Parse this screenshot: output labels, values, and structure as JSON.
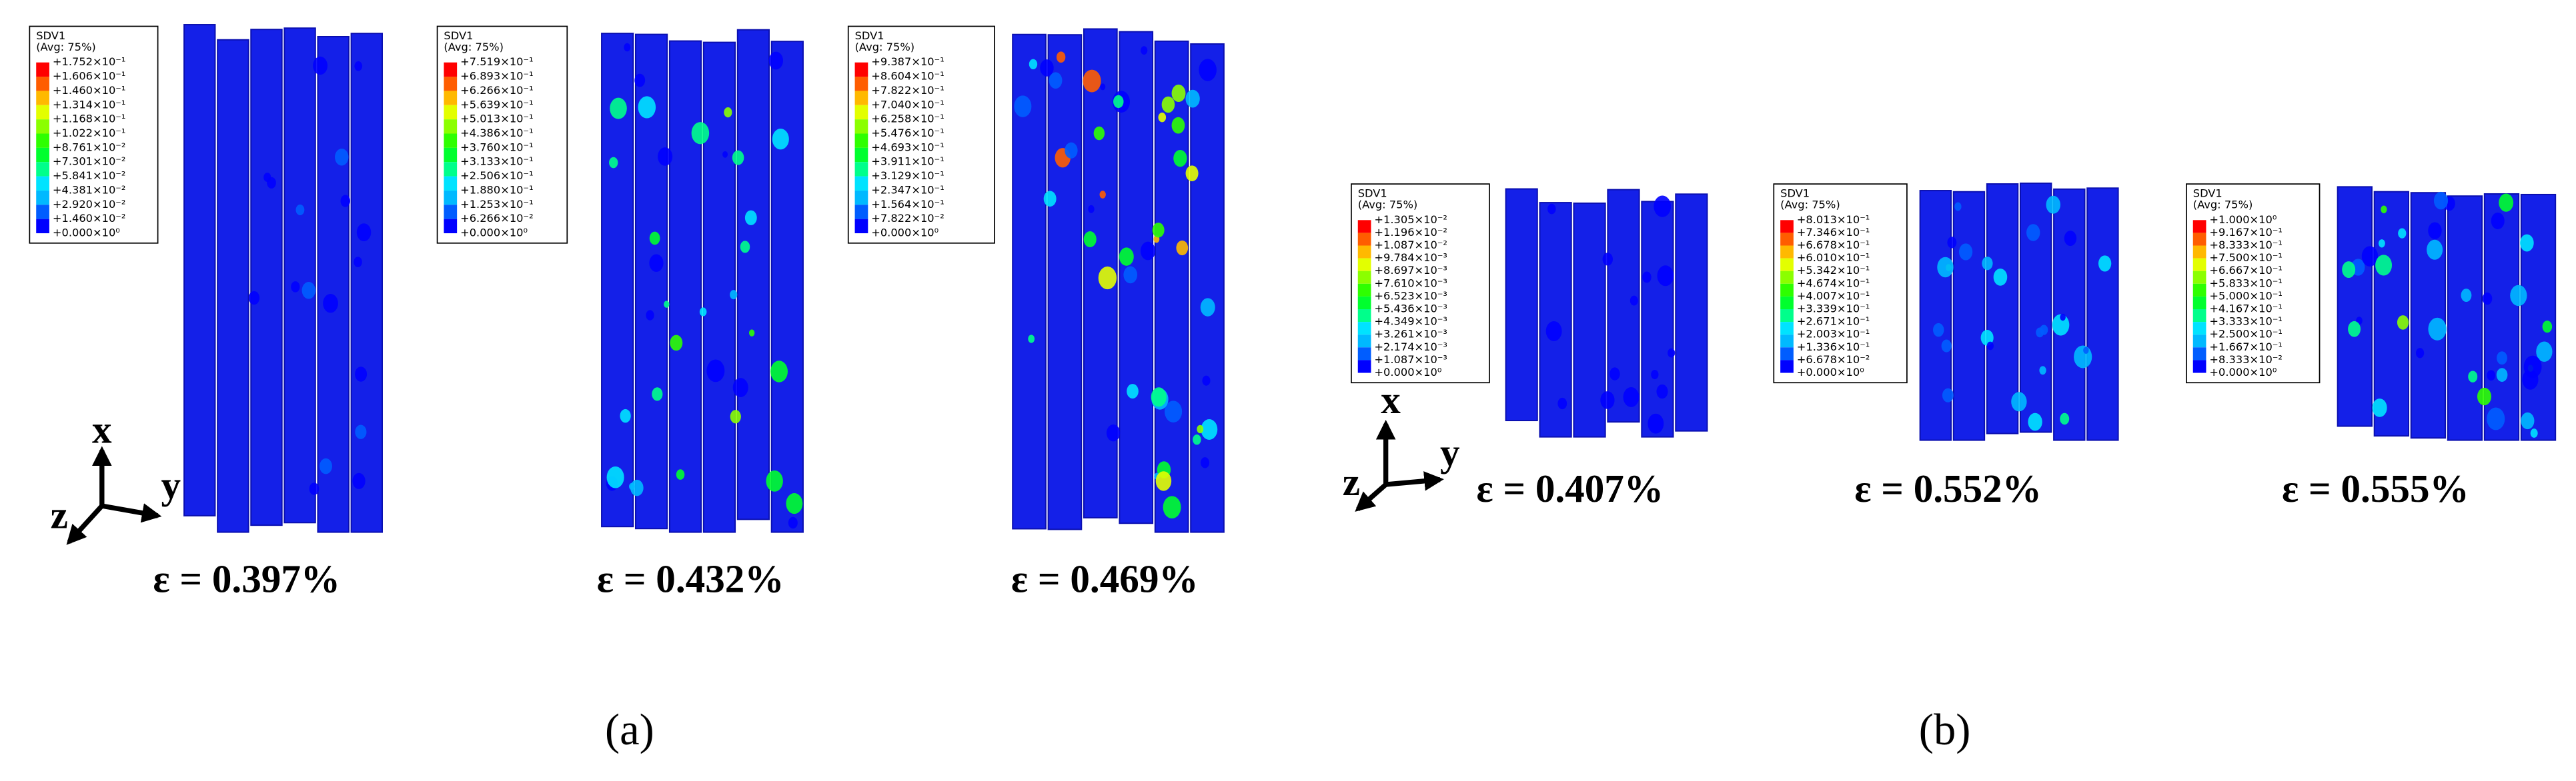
{
  "panels": [
    {
      "legend_title": "SDV1",
      "legend_note": "(Avg: 75%)",
      "legend_values": [
        "+1.752×10⁻¹",
        "+1.606×10⁻¹",
        "+1.460×10⁻¹",
        "+1.314×10⁻¹",
        "+1.168×10⁻¹",
        "+1.022×10⁻¹",
        "+8.761×10⁻²",
        "+7.301×10⁻²",
        "+5.841×10⁻²",
        "+4.381×10⁻²",
        "+2.920×10⁻²",
        "+1.460×10⁻²",
        "+0.000×10⁰"
      ],
      "strain": "ε = 0.397%"
    },
    {
      "legend_title": "SDV1",
      "legend_note": "(Avg: 75%)",
      "legend_values": [
        "+7.519×10⁻¹",
        "+6.893×10⁻¹",
        "+6.266×10⁻¹",
        "+5.639×10⁻¹",
        "+5.013×10⁻¹",
        "+4.386×10⁻¹",
        "+3.760×10⁻¹",
        "+3.133×10⁻¹",
        "+2.506×10⁻¹",
        "+1.880×10⁻¹",
        "+1.253×10⁻¹",
        "+6.266×10⁻²",
        "+0.000×10⁰"
      ],
      "strain": "ε = 0.432%"
    },
    {
      "legend_title": "SDV1",
      "legend_note": "(Avg: 75%)",
      "legend_values": [
        "+9.387×10⁻¹",
        "+8.604×10⁻¹",
        "+7.822×10⁻¹",
        "+7.040×10⁻¹",
        "+6.258×10⁻¹",
        "+5.476×10⁻¹",
        "+4.693×10⁻¹",
        "+3.911×10⁻¹",
        "+3.129×10⁻¹",
        "+2.347×10⁻¹",
        "+1.564×10⁻¹",
        "+7.822×10⁻²",
        "+0.000×10⁰"
      ],
      "strain": "ε = 0.469%"
    },
    {
      "legend_title": "SDV1",
      "legend_note": "(Avg: 75%)",
      "legend_values": [
        "+1.305×10⁻²",
        "+1.196×10⁻²",
        "+1.087×10⁻²",
        "+9.784×10⁻³",
        "+8.697×10⁻³",
        "+7.610×10⁻³",
        "+6.523×10⁻³",
        "+5.436×10⁻³",
        "+4.349×10⁻³",
        "+3.261×10⁻³",
        "+2.174×10⁻³",
        "+1.087×10⁻³",
        "+0.000×10⁰"
      ],
      "strain": "ε = 0.407%"
    },
    {
      "legend_title": "SDV1",
      "legend_note": "(Avg: 75%)",
      "legend_values": [
        "+8.013×10⁻¹",
        "+7.346×10⁻¹",
        "+6.678×10⁻¹",
        "+6.010×10⁻¹",
        "+5.342×10⁻¹",
        "+4.674×10⁻¹",
        "+4.007×10⁻¹",
        "+3.339×10⁻¹",
        "+2.671×10⁻¹",
        "+2.003×10⁻¹",
        "+1.336×10⁻¹",
        "+6.678×10⁻²",
        "+0.000×10⁰"
      ],
      "strain": "ε = 0.552%"
    },
    {
      "legend_title": "SDV1",
      "legend_note": "(Avg: 75%)",
      "legend_values": [
        "+1.000×10⁰",
        "+9.167×10⁻¹",
        "+8.333×10⁻¹",
        "+7.500×10⁻¹",
        "+6.667×10⁻¹",
        "+5.833×10⁻¹",
        "+5.000×10⁻¹",
        "+4.167×10⁻¹",
        "+3.333×10⁻¹",
        "+2.500×10⁻¹",
        "+1.667×10⁻¹",
        "+8.333×10⁻²",
        "+0.000×10⁰"
      ],
      "strain": "ε = 0.555%"
    }
  ],
  "triads": [
    {
      "x": "x",
      "y": "y",
      "z": "z"
    },
    {
      "x": "x",
      "y": "y",
      "z": "z"
    }
  ],
  "captions": [
    "(a)",
    "(b)"
  ]
}
